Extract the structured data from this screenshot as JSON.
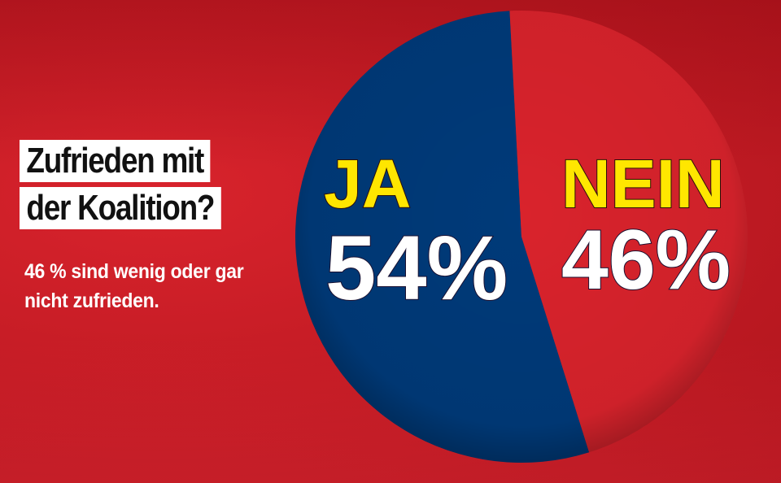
{
  "headline": {
    "line1": "Zufrieden mit",
    "line2": "der Koalition?"
  },
  "subtitle": "46 % sind wenig oder gar nicht zufrieden.",
  "colors": {
    "background": "#c51c25",
    "ja": "#003a79",
    "nein": "#d9232c",
    "category_label": "#ffe600",
    "percent_label": "#ffffff"
  },
  "chart_data": {
    "type": "pie",
    "title": "Zufrieden mit der Koalition?",
    "categories": [
      "JA",
      "NEIN"
    ],
    "values": [
      54,
      46
    ],
    "value_labels": [
      "54%",
      "46%"
    ],
    "legend": "none"
  }
}
